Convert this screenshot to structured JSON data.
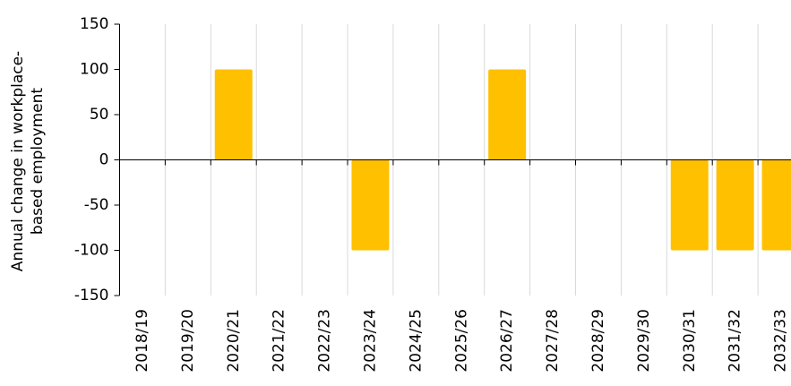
{
  "chart_data": {
    "type": "bar",
    "ylabel": [
      "Annual change in workplace-",
      "based employment"
    ],
    "categories": [
      "2018/19",
      "2019/20",
      "2020/21",
      "2021/22",
      "2022/23",
      "2023/24",
      "2024/25",
      "2025/26",
      "2026/27",
      "2027/28",
      "2028/29",
      "2029/30",
      "2030/31",
      "2031/32",
      "2032/33"
    ],
    "values": [
      0,
      0,
      100,
      0,
      0,
      -100,
      0,
      0,
      100,
      0,
      0,
      0,
      -100,
      -100,
      -100
    ],
    "color": "#ffc000",
    "ylim": [
      -150,
      150
    ],
    "yticks": [
      -150,
      -100,
      -50,
      0,
      50,
      100,
      150
    ],
    "grid": true
  }
}
